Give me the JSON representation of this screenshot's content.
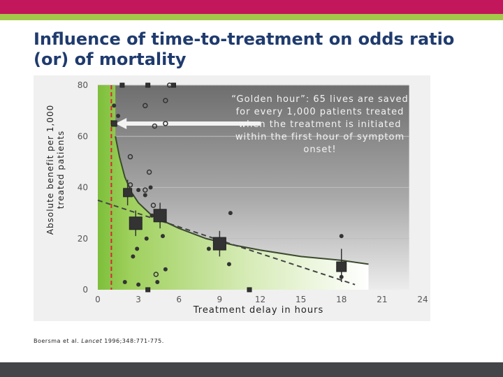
{
  "title": "Influence of time-to-treatment on odds ratio (or) of mortality",
  "reference": {
    "authors": "Boersma et al. ",
    "journal": "Lancet",
    "citation": " 1996;348:771-775."
  },
  "colors": {
    "header_bar": "#c2185b",
    "header_stripe": "#a3c94a",
    "footer_bar": "#444548",
    "title": "#1f3b6e",
    "golden_hour_fill": "#8cc63f",
    "golden_hour_line": "#e0203a"
  },
  "chart_data": {
    "type": "scatter",
    "title": "",
    "xlabel": "Treatment delay in hours",
    "ylabel": "Absolute benefit per 1,000 treated patients",
    "xlim": [
      0,
      24
    ],
    "ylim": [
      0,
      80
    ],
    "x_ticks": [
      0,
      3,
      6,
      9,
      12,
      15,
      18,
      21,
      24
    ],
    "y_ticks": [
      0,
      20,
      40,
      60,
      80
    ],
    "grid": true,
    "annotation": {
      "text": "“Golden hour”: 65 lives are saved for every 1,000 patients treated when the treatment is initiated within the first hour of symptom onset!",
      "arrow_from": [
        12,
        65
      ],
      "arrow_to": [
        1.3,
        65
      ]
    },
    "golden_hour": {
      "x": 1,
      "label": ""
    },
    "series": [
      {
        "marker": "square",
        "points": [
          {
            "x": 1.2,
            "y": 65,
            "size": 4
          },
          {
            "x": 2.2,
            "y": 38,
            "size": 6
          },
          {
            "x": 2.8,
            "y": 26,
            "size": 9
          },
          {
            "x": 4.6,
            "y": 29,
            "size": 9
          },
          {
            "x": 9.0,
            "y": 18,
            "size": 9
          },
          {
            "x": 18.0,
            "y": 9,
            "size": 7
          },
          {
            "x": 1.8,
            "y": 80,
            "size": 3
          },
          {
            "x": 3.7,
            "y": 80,
            "size": 3
          },
          {
            "x": 5.6,
            "y": 80,
            "size": 3
          },
          {
            "x": 3.7,
            "y": 0,
            "size": 3
          },
          {
            "x": 11.2,
            "y": 0,
            "size": 3
          }
        ]
      },
      {
        "marker": "filled-circle",
        "points": [
          {
            "x": 1.2,
            "y": 72
          },
          {
            "x": 1.5,
            "y": 68
          },
          {
            "x": 2.5,
            "y": 37
          },
          {
            "x": 3.0,
            "y": 39
          },
          {
            "x": 3.5,
            "y": 37
          },
          {
            "x": 3.9,
            "y": 40
          },
          {
            "x": 4.0,
            "y": 29
          },
          {
            "x": 3.6,
            "y": 20
          },
          {
            "x": 2.6,
            "y": 13
          },
          {
            "x": 2.9,
            "y": 16
          },
          {
            "x": 4.8,
            "y": 21
          },
          {
            "x": 5.0,
            "y": 8
          },
          {
            "x": 2.0,
            "y": 3
          },
          {
            "x": 3.0,
            "y": 2
          },
          {
            "x": 4.4,
            "y": 3
          },
          {
            "x": 9.8,
            "y": 30
          },
          {
            "x": 8.2,
            "y": 16
          },
          {
            "x": 9.7,
            "y": 10
          },
          {
            "x": 18.0,
            "y": 21
          },
          {
            "x": 18.0,
            "y": 5
          }
        ]
      },
      {
        "marker": "open-circle",
        "points": [
          {
            "x": 3.5,
            "y": 72
          },
          {
            "x": 5.0,
            "y": 74
          },
          {
            "x": 5.3,
            "y": 80
          },
          {
            "x": 4.2,
            "y": 64
          },
          {
            "x": 5.0,
            "y": 65
          },
          {
            "x": 2.4,
            "y": 52
          },
          {
            "x": 3.8,
            "y": 46
          },
          {
            "x": 3.5,
            "y": 39
          },
          {
            "x": 2.4,
            "y": 41
          },
          {
            "x": 4.1,
            "y": 33
          },
          {
            "x": 4.3,
            "y": 6
          }
        ]
      }
    ],
    "error_bars": [
      {
        "x": 2.2,
        "low": 33,
        "high": 43
      },
      {
        "x": 2.8,
        "low": 21,
        "high": 31
      },
      {
        "x": 4.6,
        "low": 24,
        "high": 34
      },
      {
        "x": 9.0,
        "low": 13,
        "high": 23
      },
      {
        "x": 18.0,
        "low": 3,
        "high": 16
      }
    ],
    "fit_curve": {
      "style": "solid",
      "x": [
        1.3,
        1.6,
        2.0,
        2.5,
        3,
        4,
        5,
        6,
        8,
        10,
        12,
        15,
        18,
        20
      ],
      "y": [
        60,
        52,
        44,
        38,
        34,
        29,
        26.5,
        24,
        20,
        17.5,
        15.5,
        13,
        11.5,
        10
      ]
    },
    "linear_trend": {
      "style": "dashed",
      "x": [
        0,
        19
      ],
      "y": [
        35,
        2
      ]
    }
  }
}
